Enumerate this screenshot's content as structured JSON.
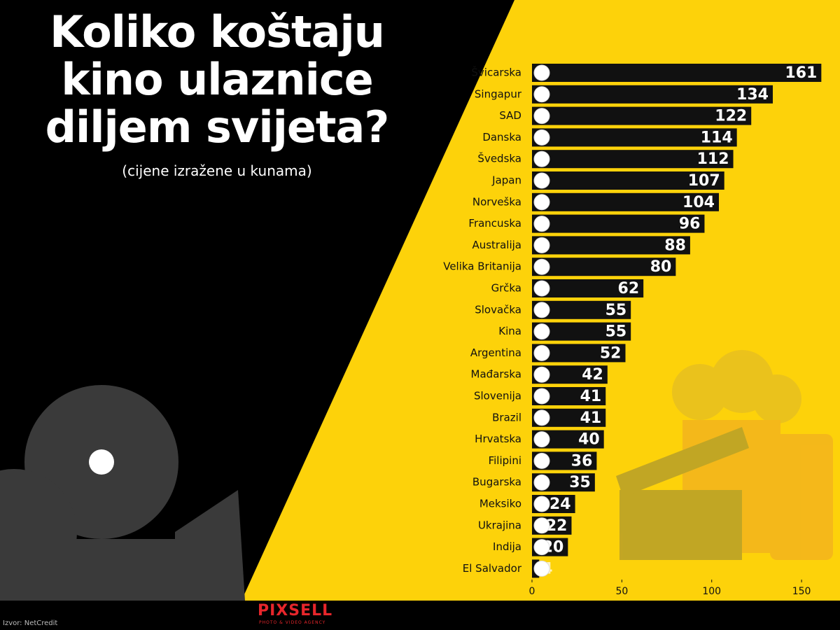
{
  "chart_data": {
    "type": "hbar",
    "title": "Koliko koštaju kino ulaznice diljem svijeta?",
    "subtitle": "(cijene izražene u kunama)",
    "source": "Izvor: NetCredit",
    "brand": "PIXSELL",
    "brand_tagline": "PHOTO & VIDEO AGENCY",
    "categories": [
      "Švicarska",
      "Singapur",
      "SAD",
      "Danska",
      "Švedska",
      "Japan",
      "Norveška",
      "Francuska",
      "Australija",
      "Velika Britanija",
      "Grčka",
      "Slovačka",
      "Kina",
      "Argentina",
      "Mađarska",
      "Slovenija",
      "Brazil",
      "Hrvatska",
      "Filipini",
      "Bugarska",
      "Meksiko",
      "Ukrajina",
      "Indija",
      "El Salvador"
    ],
    "values": [
      161,
      134,
      122,
      114,
      112,
      107,
      104,
      96,
      88,
      80,
      62,
      55,
      55,
      52,
      42,
      41,
      41,
      40,
      36,
      35,
      24,
      22,
      20,
      4
    ],
    "color": "#111111",
    "xlim": [
      0,
      165
    ],
    "xticks": [
      0,
      50,
      100,
      150
    ]
  }
}
